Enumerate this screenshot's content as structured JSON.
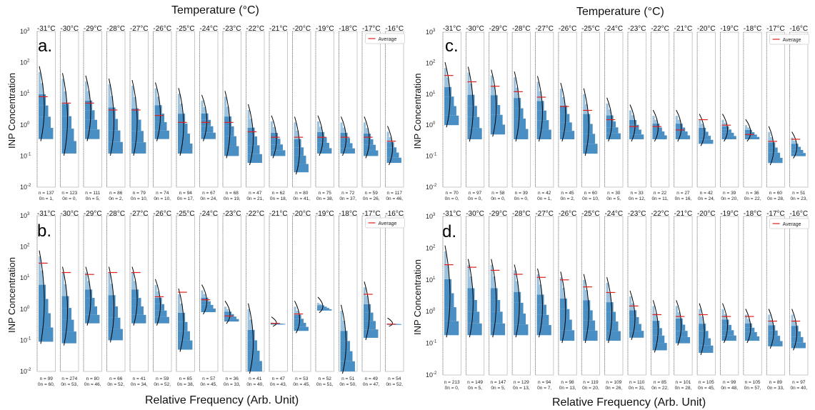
{
  "figure": {
    "top_title": "Temperature (°C)",
    "bottom_title": "Relative Frequency (Arb. Unit)",
    "ylabel": "INP Concentration",
    "legend_label": "Average"
  },
  "chart_data": [
    {
      "type": "histogram-small-multiples",
      "panel": "a.",
      "ylabel": "INP Concentration",
      "y_scale": "log",
      "ylim": [
        0.01,
        1000
      ],
      "y_tick_labels": [
        "10^-2",
        "10^-1",
        "10^0",
        "10^1",
        "10^2",
        "10^3"
      ],
      "temperatures": [
        "-31°C",
        "-30°C",
        "-29°C",
        "-28°C",
        "-27°C",
        "-26°C",
        "-25°C",
        "-24°C",
        "-23°C",
        "-22°C",
        "-21°C",
        "-20°C",
        "-19°C",
        "-18°C",
        "-17°C",
        "-16°C"
      ],
      "counts": [
        "n = 137\n0n = 1,",
        "n = 123\n0n = 0,",
        "n = 111\n0n = 5,",
        "n = 86\n0n = 2,",
        "n = 79\n0n = 10,",
        "n = 74\n0n = 10,",
        "n = 94\n0n = 17,",
        "n = 67\n0n = 24,",
        "n = 68\n0n = 19,",
        "n = 47\n0n = 21,",
        "n = 62\n0n = 18,",
        "n = 80\n0n = 41,",
        "n = 75\n0n = 38,",
        "n = 72\n0n = 37,",
        "n = 59\n0n = 26,",
        "n = 117\n0n = 46,"
      ],
      "averages": [
        8,
        5,
        5,
        3,
        3,
        2,
        1.2,
        1.2,
        1.2,
        0.6,
        0.4,
        0.4,
        0.4,
        0.4,
        0.4,
        0.3
      ],
      "ranges": [
        [
          0.35,
          50
        ],
        [
          0.12,
          30
        ],
        [
          0.35,
          25
        ],
        [
          0.12,
          20
        ],
        [
          0.12,
          18
        ],
        [
          0.35,
          15
        ],
        [
          0.12,
          10
        ],
        [
          0.35,
          6
        ],
        [
          0.1,
          8
        ],
        [
          0.06,
          3
        ],
        [
          0.1,
          1.3
        ],
        [
          0.03,
          1.2
        ],
        [
          0.12,
          1.3
        ],
        [
          0.12,
          1.2
        ],
        [
          0.1,
          1.2
        ],
        [
          0.06,
          0.6
        ]
      ],
      "legend": "Average"
    },
    {
      "type": "histogram-small-multiples",
      "panel": "b.",
      "ylabel": "INP Concentration",
      "y_scale": "log",
      "ylim": [
        0.01,
        1000
      ],
      "y_tick_labels": [
        "10^-2",
        "10^-1",
        "10^0",
        "10^1",
        "10^2",
        "10^3"
      ],
      "temperatures": [
        "-31°C",
        "-30°C",
        "-29°C",
        "-28°C",
        "-27°C",
        "-26°C",
        "-25°C",
        "-24°C",
        "-23°C",
        "-22°C",
        "-21°C",
        "-20°C",
        "-19°C",
        "-18°C",
        "-17°C",
        "-16°C"
      ],
      "counts": [
        "n = 99\n0n = 60,",
        "n = 274\n0n = 53,",
        "n = 80\n0n = 46,",
        "n = 66\n0n = 52,",
        "n = 41\n0n = 34,",
        "n = 59\n0n = 52,",
        "n = 65\n0n = 38,",
        "n = 57\n0n = 45,",
        "n = 36\n0n = 33,",
        "n = 41\n0n = 40,",
        "n = 47\n0n = 43,",
        "n = 53\n0n = 45,",
        "n = 52\n0n = 51,",
        "n = 51\n0n = 50,",
        "n = 49\n0n = 47,",
        "n = 54\n0n = 52,"
      ],
      "averages": [
        30,
        15,
        13,
        15,
        15,
        2.5,
        3.5,
        2,
        0.6,
        null,
        0.35,
        0.7,
        null,
        null,
        3,
        0.33
      ],
      "ranges": [
        [
          0.09,
          50
        ],
        [
          0.08,
          15
        ],
        [
          0.35,
          15
        ],
        [
          0.1,
          15
        ],
        [
          0.35,
          15
        ],
        [
          0.35,
          6
        ],
        [
          0.05,
          3
        ],
        [
          0.8,
          4
        ],
        [
          0.4,
          1.2
        ],
        [
          0.01,
          1
        ],
        [
          0.33,
          0.37
        ],
        [
          0.2,
          1.2
        ],
        [
          0.9,
          1.6
        ],
        [
          0.01,
          0.9
        ],
        [
          0.12,
          5
        ],
        [
          0.33,
          0.34
        ]
      ],
      "legend": "Average"
    },
    {
      "type": "histogram-small-multiples",
      "panel": "c.",
      "ylabel": "INP Concentration",
      "y_scale": "log",
      "ylim": [
        0.01,
        1000
      ],
      "y_tick_labels": [
        "10^-2",
        "10^-1",
        "10^0",
        "10^1",
        "10^2",
        "10^3"
      ],
      "temperatures": [
        "-31°C",
        "-30°C",
        "-29°C",
        "-28°C",
        "-27°C",
        "-26°C",
        "-25°C",
        "-24°C",
        "-23°C",
        "-22°C",
        "-21°C",
        "-20°C",
        "-19°C",
        "-18°C",
        "-17°C",
        "-16°C"
      ],
      "counts": [
        "n = 70\n0n = 0,",
        "n = 97\n0n = 0,",
        "n = 58\n0n = 0,",
        "n = 39\n0n = 0,",
        "n = 42\n0n = 1,",
        "n = 45\n0n = 2,",
        "n = 60\n0n = 10,",
        "n = 30\n0n = 5,",
        "n = 33\n0n = 12,",
        "n = 22\n0n = 11,",
        "n = 27\n0n = 16,",
        "n = 42\n0n = 24,",
        "n = 39\n0n = 20,",
        "n = 36\n0n = 22,",
        "n = 60\n0n = 28,",
        "n = 51\n0n = 23,"
      ],
      "averages": [
        40,
        25,
        18,
        12,
        8,
        4,
        3,
        1.5,
        0.9,
        0.9,
        0.7,
        1.5,
        1,
        0.5,
        0.3,
        0.35
      ],
      "ranges": [
        [
          1,
          70
        ],
        [
          0.35,
          50
        ],
        [
          0.5,
          40
        ],
        [
          0.35,
          35
        ],
        [
          0.35,
          25
        ],
        [
          0.35,
          15
        ],
        [
          0.12,
          10
        ],
        [
          0.35,
          5
        ],
        [
          0.35,
          3
        ],
        [
          0.35,
          2
        ],
        [
          0.35,
          2
        ],
        [
          0.25,
          1.5
        ],
        [
          0.35,
          1.5
        ],
        [
          0.35,
          1
        ],
        [
          0.06,
          0.6
        ],
        [
          0.1,
          0.4
        ]
      ],
      "legend": "Average"
    },
    {
      "type": "histogram-small-multiples",
      "panel": "d.",
      "ylabel": "INP Concentration",
      "y_scale": "log",
      "ylim": [
        0.01,
        1000
      ],
      "y_tick_labels": [
        "10^-2",
        "10^-1",
        "10^0",
        "10^1",
        "10^2",
        "10^3"
      ],
      "temperatures": [
        "-31°C",
        "-30°C",
        "-29°C",
        "-28°C",
        "-27°C",
        "-26°C",
        "-25°C",
        "-24°C",
        "-23°C",
        "-22°C",
        "-21°C",
        "-20°C",
        "-19°C",
        "-18°C",
        "-17°C",
        "-16°C"
      ],
      "counts": [
        "n = 213\n0n = 0,",
        "n = 149\n0n = 5,",
        "n = 147\n0n = 5,",
        "n = 129\n0n = 13,",
        "n = 94\n0n = 7,",
        "n = 98\n0n = 13,",
        "n = 119\n0n = 20,",
        "n = 109\n0n = 26,",
        "n = 110\n0n = 31,",
        "n = 85\n0n = 22,",
        "n = 101\n0n = 28,",
        "n = 105\n0n = 45,",
        "n = 99\n0n = 48,",
        "n = 105\n0n = 57,",
        "n = 89\n0n = 33,",
        "n = 97\n0n = 40,"
      ],
      "averages": [
        30,
        25,
        20,
        15,
        12,
        10,
        6,
        4,
        1.5,
        0.8,
        0.7,
        0.8,
        0.7,
        0.7,
        0.5,
        0.5
      ],
      "ranges": [
        [
          0.18,
          80
        ],
        [
          0.18,
          30
        ],
        [
          0.18,
          30
        ],
        [
          0.18,
          20
        ],
        [
          0.18,
          15
        ],
        [
          0.12,
          12
        ],
        [
          0.12,
          10
        ],
        [
          0.12,
          8
        ],
        [
          0.15,
          3
        ],
        [
          0.06,
          1.5
        ],
        [
          0.1,
          1.5
        ],
        [
          0.05,
          1.2
        ],
        [
          0.12,
          1.2
        ],
        [
          0.12,
          0.8
        ],
        [
          0.08,
          0.8
        ],
        [
          0.07,
          0.8
        ]
      ],
      "legend": "Average"
    }
  ]
}
